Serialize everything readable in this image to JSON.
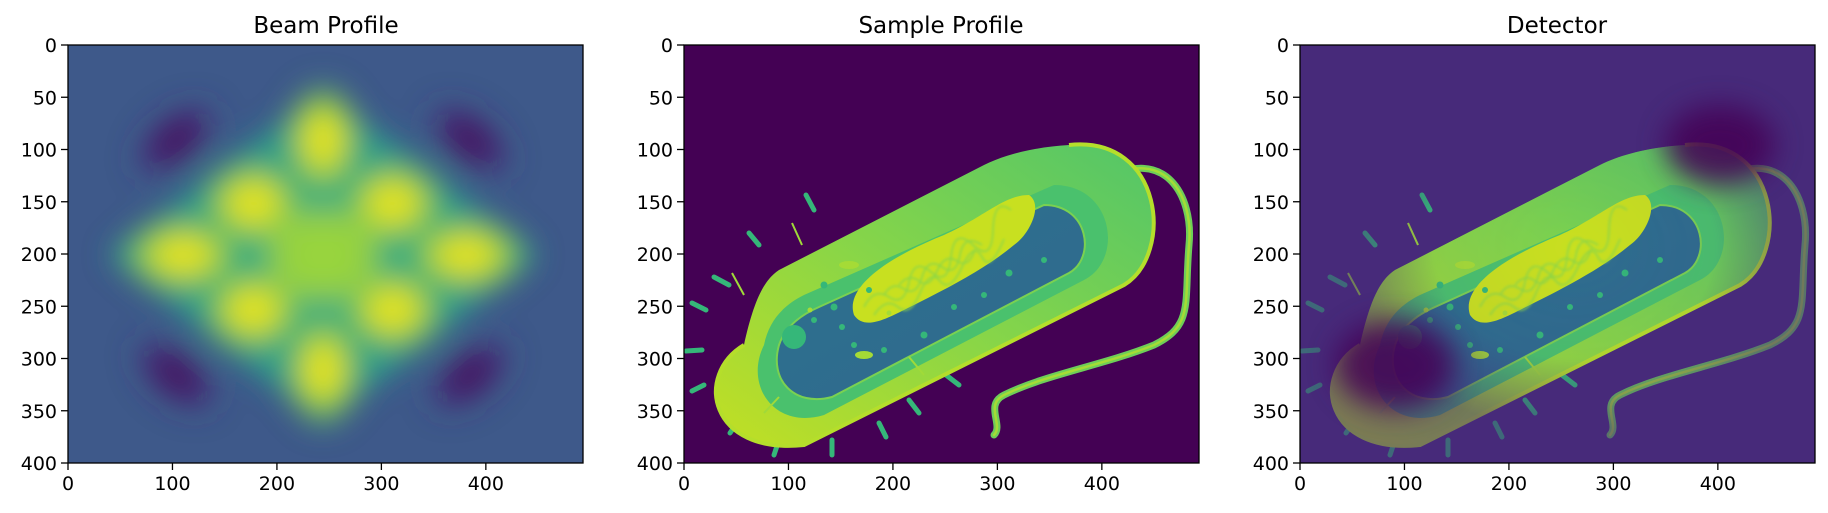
{
  "chart_data": [
    {
      "type": "heatmap",
      "title": "Beam Profile",
      "xlabel": "",
      "ylabel": "",
      "colormap": "viridis",
      "xlim": [
        0,
        493
      ],
      "ylim": [
        400,
        0
      ],
      "x_ticks": [
        "0",
        "100",
        "200",
        "300",
        "400"
      ],
      "y_ticks": [
        "0",
        "50",
        "100",
        "150",
        "200",
        "250",
        "300",
        "350",
        "400"
      ],
      "x_tick_values": [
        0,
        100,
        200,
        300,
        400
      ],
      "y_tick_values": [
        0,
        50,
        100,
        150,
        200,
        250,
        300,
        350,
        400
      ],
      "description_values": {
        "background_level": 0.3,
        "bright_lobes": [
          {
            "x": 245,
            "y": 95,
            "level": 1.0
          },
          {
            "x": 245,
            "y": 310,
            "level": 1.0
          },
          {
            "x": 110,
            "y": 200,
            "level": 1.0
          },
          {
            "x": 385,
            "y": 200,
            "level": 1.0
          },
          {
            "x": 180,
            "y": 150,
            "level": 0.97
          },
          {
            "x": 310,
            "y": 150,
            "level": 0.97
          },
          {
            "x": 180,
            "y": 255,
            "level": 0.97
          },
          {
            "x": 310,
            "y": 255,
            "level": 0.97
          },
          {
            "x": 245,
            "y": 200,
            "level": 0.85
          }
        ],
        "dark_lobes": [
          {
            "x": 105,
            "y": 90,
            "level": 0.0
          },
          {
            "x": 385,
            "y": 90,
            "level": 0.0
          },
          {
            "x": 105,
            "y": 315,
            "level": 0.0
          },
          {
            "x": 385,
            "y": 315,
            "level": 0.0
          }
        ]
      }
    },
    {
      "type": "heatmap",
      "title": "Sample Profile",
      "xlabel": "",
      "ylabel": "",
      "colormap": "viridis",
      "xlim": [
        0,
        493
      ],
      "ylim": [
        400,
        0
      ],
      "x_ticks": [
        "0",
        "100",
        "200",
        "300",
        "400"
      ],
      "y_ticks": [
        "0",
        "50",
        "100",
        "150",
        "200",
        "250",
        "300",
        "350",
        "400"
      ],
      "x_tick_values": [
        0,
        100,
        200,
        300,
        400
      ],
      "y_tick_values": [
        0,
        50,
        100,
        150,
        200,
        250,
        300,
        350,
        400
      ],
      "background_level": 0.0
    },
    {
      "type": "heatmap",
      "title": "Detector",
      "xlabel": "",
      "ylabel": "",
      "colormap": "viridis",
      "xlim": [
        0,
        493
      ],
      "ylim": [
        400,
        0
      ],
      "x_ticks": [
        "0",
        "100",
        "200",
        "300",
        "400"
      ],
      "y_ticks": [
        "0",
        "50",
        "100",
        "150",
        "200",
        "250",
        "300",
        "350",
        "400"
      ],
      "x_tick_values": [
        0,
        100,
        200,
        300,
        400
      ],
      "y_tick_values": [
        0,
        50,
        100,
        150,
        200,
        250,
        300,
        350,
        400
      ],
      "background_level": 0.1
    }
  ]
}
